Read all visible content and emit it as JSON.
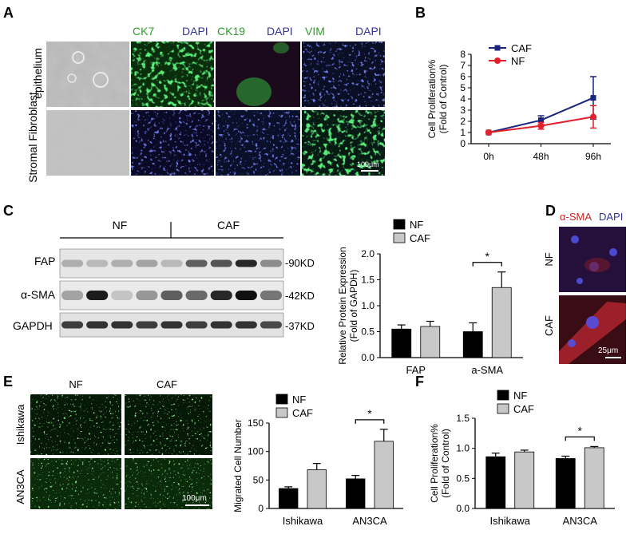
{
  "panel_letters": {
    "a": "A",
    "b": "B",
    "c": "C",
    "d": "D",
    "e": "E",
    "f": "F"
  },
  "panelA": {
    "channels": [
      "CK7",
      "DAPI",
      "CK19",
      "DAPI",
      "VIM",
      "DAPI"
    ],
    "rows": [
      "epithelium",
      "Stromal Fibroblast"
    ],
    "scalebar": "100μm"
  },
  "panelC_blot": {
    "groups": [
      "NF",
      "CAF"
    ],
    "bands": [
      "FAP",
      "α-SMA",
      "GAPDH"
    ],
    "sizes": [
      "-90KD",
      "-42KD",
      "-37KD"
    ]
  },
  "panelD": {
    "stain1": "α-SMA",
    "stain2": "DAPI",
    "rows": [
      "NF",
      "CAF"
    ],
    "scalebar": "25μm"
  },
  "panelE_images": {
    "cols": [
      "NF",
      "CAF"
    ],
    "rows": [
      "Ishikawa",
      "AN3CA"
    ],
    "scalebar": "100μm"
  },
  "colors": {
    "caf_line": "#1a237e",
    "nf_line": "#e0202a",
    "bar_dark": "#000000",
    "bar_light": "#c8c8c8",
    "green": "#2aa02a",
    "dapi": "#33339a",
    "red": "#cc2222"
  },
  "chart_data": [
    {
      "id": "B",
      "type": "line",
      "x": [
        "0h",
        "48h",
        "96h"
      ],
      "series": [
        {
          "name": "CAF",
          "values": [
            1.0,
            2.1,
            4.1
          ],
          "errors": [
            0.05,
            0.4,
            1.9
          ]
        },
        {
          "name": "NF",
          "values": [
            1.0,
            1.6,
            2.4
          ],
          "errors": [
            0.05,
            0.3,
            1.0
          ]
        }
      ],
      "ylabel": "Cell Proliferation%\n(Fold of Control)",
      "ylim": [
        0,
        8
      ],
      "yticks": [
        0,
        1,
        2,
        3,
        4,
        5,
        6,
        7,
        8
      ],
      "legend": "top-left"
    },
    {
      "id": "C",
      "type": "bar",
      "categories": [
        "FAP",
        "a-SMA"
      ],
      "series": [
        {
          "name": "NF",
          "values": [
            0.55,
            0.5
          ],
          "errors": [
            0.08,
            0.17
          ]
        },
        {
          "name": "CAF",
          "values": [
            0.6,
            1.35
          ],
          "errors": [
            0.1,
            0.3
          ]
        }
      ],
      "ylabel": "Relative Protein Expression\n(Fold of GAPDH)",
      "ylim": [
        0,
        2.0
      ],
      "yticks": [
        "0.0",
        "0.5",
        "1.0",
        "1.5",
        "2.0"
      ],
      "annotation": "*",
      "annot_category": 1,
      "legend": "top-left"
    },
    {
      "id": "E",
      "type": "bar",
      "categories": [
        "Ishikawa",
        "AN3CA"
      ],
      "series": [
        {
          "name": "NF",
          "values": [
            35,
            52
          ],
          "errors": [
            3,
            6
          ]
        },
        {
          "name": "CAF",
          "values": [
            68,
            118
          ],
          "errors": [
            11,
            21
          ]
        }
      ],
      "ylabel": "Migrated Cell Number",
      "ylim": [
        0,
        150
      ],
      "yticks": [
        "0",
        "50",
        "100",
        "150"
      ],
      "annotation": "*",
      "annot_category": 1,
      "legend": "top-left"
    },
    {
      "id": "F",
      "type": "bar",
      "categories": [
        "Ishikawa",
        "AN3CA"
      ],
      "series": [
        {
          "name": "NF",
          "values": [
            0.86,
            0.83
          ],
          "errors": [
            0.06,
            0.04
          ]
        },
        {
          "name": "CAF",
          "values": [
            0.94,
            1.01
          ],
          "errors": [
            0.03,
            0.02
          ]
        }
      ],
      "ylabel": "Cell Proliferation%\n(Fold of Control)",
      "ylim": [
        0,
        1.5
      ],
      "yticks": [
        "0.0",
        "0.5",
        "1.0",
        "1.5"
      ],
      "annotation": "*",
      "annot_category": 1,
      "legend": "top-left"
    }
  ]
}
